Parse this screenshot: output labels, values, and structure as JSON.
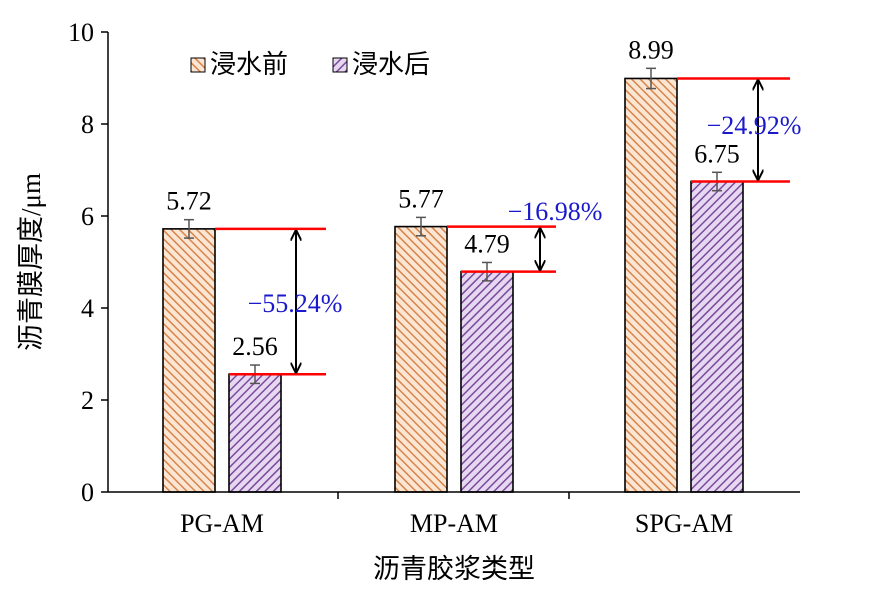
{
  "chart_data": {
    "type": "bar",
    "categories": [
      "PG-AM",
      "MP-AM",
      "SPG-AM"
    ],
    "series": [
      {
        "name": "浸水前",
        "values": [
          5.72,
          5.77,
          8.99
        ],
        "errors": [
          0.2,
          0.2,
          0.22
        ],
        "color": "#e8a070"
      },
      {
        "name": "浸水后",
        "values": [
          2.56,
          4.79,
          6.75
        ],
        "errors": [
          0.2,
          0.2,
          0.2
        ],
        "color": "#8a5ca8"
      }
    ],
    "data_labels": [
      [
        "5.72",
        "5.77",
        "8.99"
      ],
      [
        "2.56",
        "4.79",
        "6.75"
      ]
    ],
    "change_labels": [
      "−55.24%",
      "−16.98%",
      "−24.92%"
    ],
    "title": "",
    "xlabel": "沥青胶浆类型",
    "ylabel": "沥青膜厚度/μm",
    "ylim": [
      0,
      10
    ],
    "yticks": [
      "0",
      "2",
      "4",
      "6",
      "8",
      "10"
    ],
    "grid": false,
    "legend_position": "top-left",
    "colors": {
      "reference_line": "#ff0000",
      "change_label": "#1a1acc",
      "axis": "#000000"
    }
  }
}
